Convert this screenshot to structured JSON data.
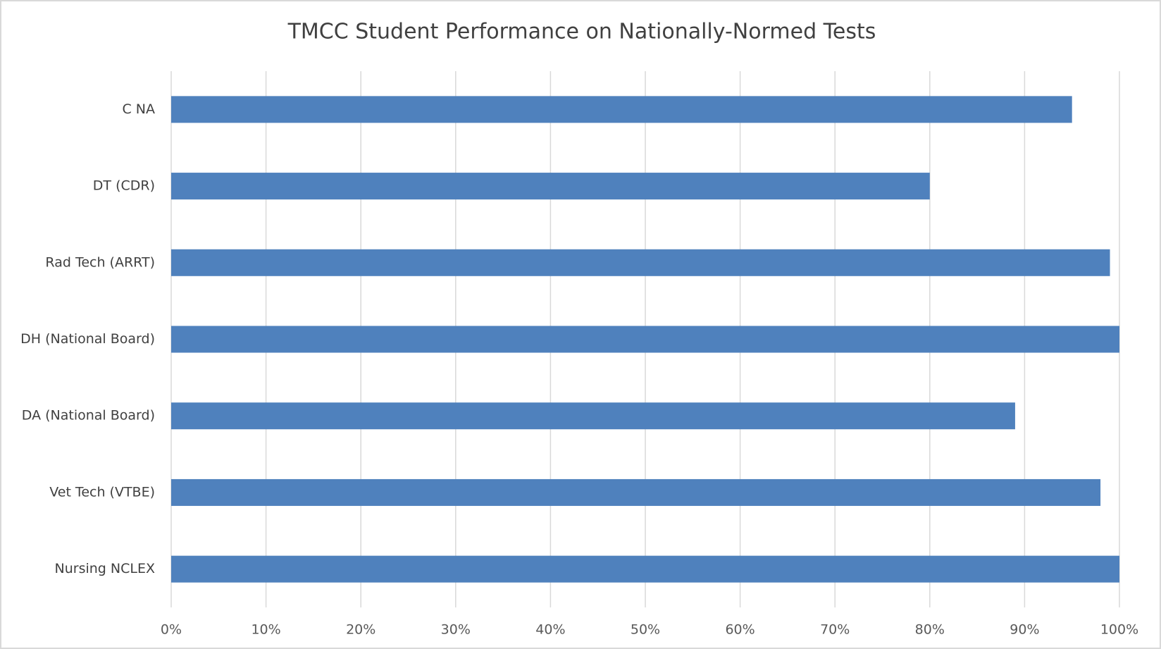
{
  "chart_data": {
    "type": "bar",
    "orientation": "horizontal",
    "title": "TMCC Student Performance on Nationally-Normed Tests",
    "categories": [
      "C NA",
      "DT (CDR)",
      "Rad Tech (ARRT)",
      "DH (National Board)",
      "DA (National Board)",
      "Vet Tech (VTBE)",
      "Nursing NCLEX"
    ],
    "values": [
      95,
      80,
      99,
      100,
      89,
      98,
      100
    ],
    "color": "#4f81bd",
    "xlim": [
      0,
      100
    ],
    "xticks": [
      {
        "value": 0,
        "label": "0%"
      },
      {
        "value": 10,
        "label": "10%"
      },
      {
        "value": 20,
        "label": "20%"
      },
      {
        "value": 30,
        "label": "30%"
      },
      {
        "value": 40,
        "label": "40%"
      },
      {
        "value": 50,
        "label": "50%"
      },
      {
        "value": 60,
        "label": "60%"
      },
      {
        "value": 70,
        "label": "70%"
      },
      {
        "value": 80,
        "label": "80%"
      },
      {
        "value": 90,
        "label": "90%"
      },
      {
        "value": 100,
        "label": "100%"
      }
    ],
    "grid": true
  }
}
